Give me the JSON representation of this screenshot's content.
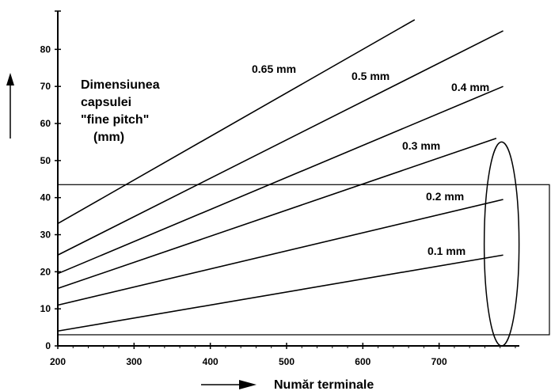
{
  "chart_data": {
    "type": "line",
    "title": "",
    "ylabel_lines": [
      "Dimensiunea",
      "capsulei",
      "\"fine pitch\"",
      "(mm)"
    ],
    "xlabel": "Număr terminale",
    "xlim": [
      200,
      800
    ],
    "ylim": [
      0,
      90
    ],
    "x_ticks": [
      200,
      300,
      400,
      500,
      600,
      700
    ],
    "y_ticks": [
      0,
      10,
      20,
      30,
      40,
      50,
      60,
      70,
      80
    ],
    "grid": false,
    "legend": "inline labels",
    "series": [
      {
        "name": "0.65 mm",
        "x": [
          200,
          668
        ],
        "y": [
          33,
          88
        ]
      },
      {
        "name": "0.5 mm",
        "x": [
          200,
          784
        ],
        "y": [
          24.5,
          85
        ]
      },
      {
        "name": "0.4 mm",
        "x": [
          200,
          784
        ],
        "y": [
          19.5,
          70
        ]
      },
      {
        "name": "0.3 mm",
        "x": [
          200,
          775
        ],
        "y": [
          15.5,
          56
        ]
      },
      {
        "name": "0.2 mm",
        "x": [
          200,
          784
        ],
        "y": [
          11,
          39.5
        ]
      },
      {
        "name": "0.1 mm",
        "x": [
          200,
          784
        ],
        "y": [
          4,
          24.5
        ]
      }
    ],
    "highlight_rect": {
      "x": [
        200,
        850
      ],
      "y": [
        3,
        43.5
      ]
    },
    "highlight_ellipse": {
      "cx": 782,
      "cy": 27.5,
      "rx": 22,
      "ry": 27.5
    }
  }
}
